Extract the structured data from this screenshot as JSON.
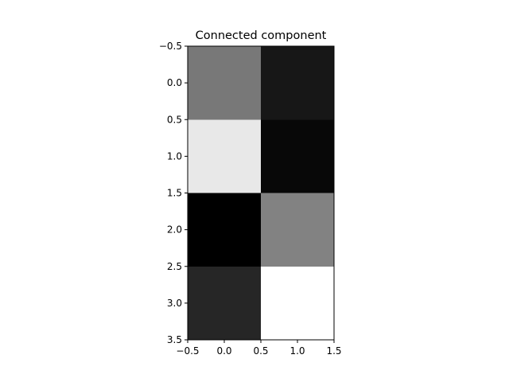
{
  "chart_data": {
    "type": "heatmap",
    "title": "Connected component",
    "colormap": "gray",
    "rows": 4,
    "cols": 2,
    "values": [
      [
        0.47,
        0.09
      ],
      [
        0.91,
        0.03
      ],
      [
        0.0,
        0.51
      ],
      [
        0.15,
        1.0
      ]
    ],
    "xlim": [
      -0.5,
      1.5
    ],
    "ylim": [
      -0.5,
      3.5
    ],
    "y_inverted": true,
    "xticks": [
      "−0.5",
      "0.0",
      "0.5",
      "1.0",
      "1.5"
    ],
    "yticks": [
      "−0.5",
      "0.0",
      "0.5",
      "1.0",
      "1.5",
      "2.0",
      "2.5",
      "3.0",
      "3.5"
    ],
    "grid": false
  }
}
